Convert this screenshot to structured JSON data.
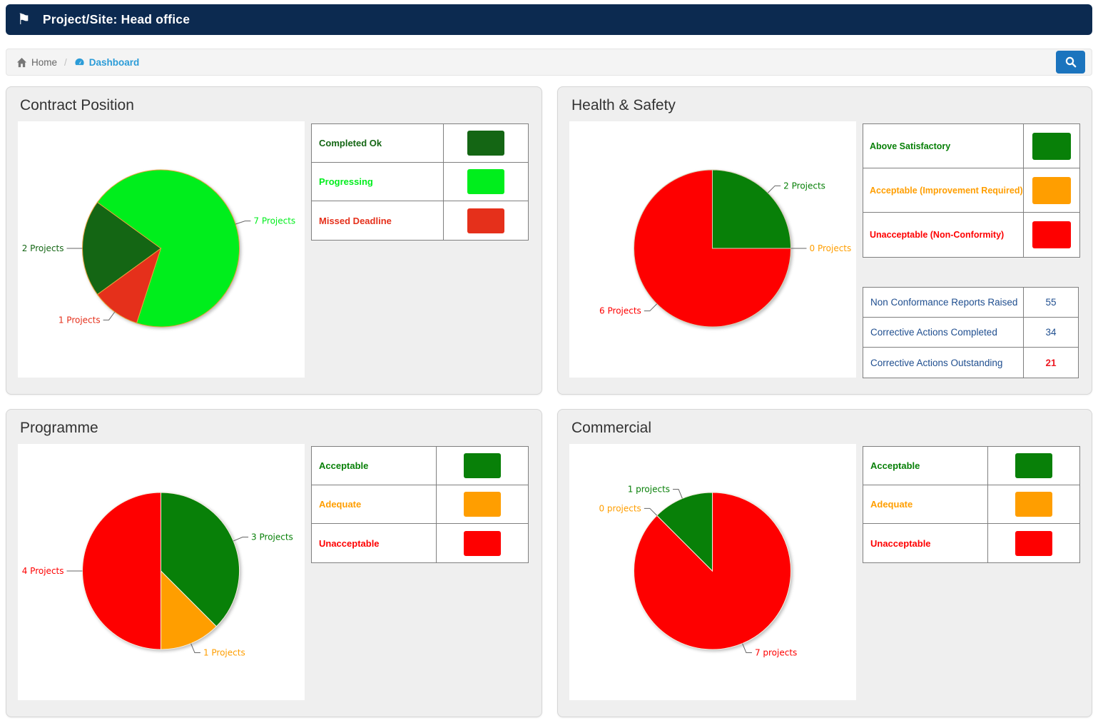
{
  "header": {
    "title": "Project/Site: Head office"
  },
  "breadcrumb": {
    "home_label": "Home",
    "separator": "/",
    "current_label": "Dashboard"
  },
  "search_button": {
    "icon": "search"
  },
  "colors": {
    "header_bg": "#0C2A50",
    "breadcrumb_link": "#2B9CD8",
    "search_btn": "#1B74BE",
    "dark_green": "#146614",
    "bright_green": "#00EE1C",
    "orange_red": "#E5301B",
    "green": "#088008",
    "orange": "#FF9E00",
    "red": "#FE0000",
    "stats_text": "#1F4E8F",
    "stats_alert": "#ED1B24"
  },
  "panels": [
    {
      "title": "Contract Position",
      "legend": [
        {
          "label": "Completed Ok",
          "color": "#146614"
        },
        {
          "label": "Progressing",
          "color": "#00EE1C"
        },
        {
          "label": "Missed Deadline",
          "color": "#E5301B"
        }
      ]
    },
    {
      "title": "Health & Safety",
      "legend": [
        {
          "label": "Above Satisfactory",
          "color": "#088008"
        },
        {
          "label": "Acceptable (Improvement Required)",
          "color": "#FF9E00"
        },
        {
          "label": "Unacceptable (Non-Conformity)",
          "color": "#FE0000"
        }
      ],
      "stats": {
        "rows": [
          {
            "label": "Non Conformance Reports Raised",
            "value": "55"
          },
          {
            "label": "Corrective Actions Completed",
            "value": "34"
          },
          {
            "label": "Corrective Actions Outstanding",
            "value": "21",
            "alert": true
          }
        ]
      }
    },
    {
      "title": "Programme",
      "legend": [
        {
          "label": "Acceptable",
          "color": "#088008"
        },
        {
          "label": "Adequate",
          "color": "#FF9E00"
        },
        {
          "label": "Unacceptable",
          "color": "#FE0000"
        }
      ]
    },
    {
      "title": "Commercial",
      "legend": [
        {
          "label": "Acceptable",
          "color": "#088008"
        },
        {
          "label": "Adequate",
          "color": "#FF9E00"
        },
        {
          "label": "Unacceptable",
          "color": "#FE0000"
        }
      ]
    }
  ],
  "chart_data": [
    {
      "type": "pie",
      "panel": "Contract Position",
      "start_angle": 234,
      "stroke": "#E8A33C",
      "slices": [
        {
          "label": "Completed Ok",
          "value": 2,
          "color": "#146614",
          "callout": "2 Projects"
        },
        {
          "label": "Progressing",
          "value": 7,
          "color": "#00EE1C",
          "callout": "7 Projects"
        },
        {
          "label": "Missed Deadline",
          "value": 1,
          "color": "#E5301B",
          "callout": "1 Projects"
        }
      ]
    },
    {
      "type": "pie",
      "panel": "Health & Safety",
      "start_angle": 0,
      "stroke": "#D9D2B5",
      "slices": [
        {
          "label": "Above Satisfactory",
          "value": 2,
          "color": "#088008",
          "callout": "2 Projects"
        },
        {
          "label": "Acceptable (Improvement Required)",
          "value": 0,
          "color": "#FF9E00",
          "callout": "0 Projects"
        },
        {
          "label": "Unacceptable (Non-Conformity)",
          "value": 6,
          "color": "#FE0000",
          "callout": "6 Projects"
        }
      ]
    },
    {
      "type": "pie",
      "panel": "Programme",
      "start_angle": 0,
      "stroke": "#F5EFE0",
      "slices": [
        {
          "label": "Acceptable",
          "value": 3,
          "color": "#088008",
          "callout": "3 Projects"
        },
        {
          "label": "Adequate",
          "value": 1,
          "color": "#FF9E00",
          "callout": "1 Projects"
        },
        {
          "label": "Unacceptable",
          "value": 4,
          "color": "#FE0000",
          "callout": "4 Projects"
        }
      ]
    },
    {
      "type": "pie",
      "panel": "Commercial",
      "start_angle": 0,
      "stroke": "#F5EFE0",
      "slices": [
        {
          "label": "Unacceptable",
          "value": 7,
          "color": "#FE0000",
          "callout": "7 projects"
        },
        {
          "label": "Adequate",
          "value": 0,
          "color": "#FF9E00",
          "callout": "0 projects"
        },
        {
          "label": "Acceptable",
          "value": 1,
          "color": "#088008",
          "callout": "1 projects"
        }
      ]
    }
  ]
}
